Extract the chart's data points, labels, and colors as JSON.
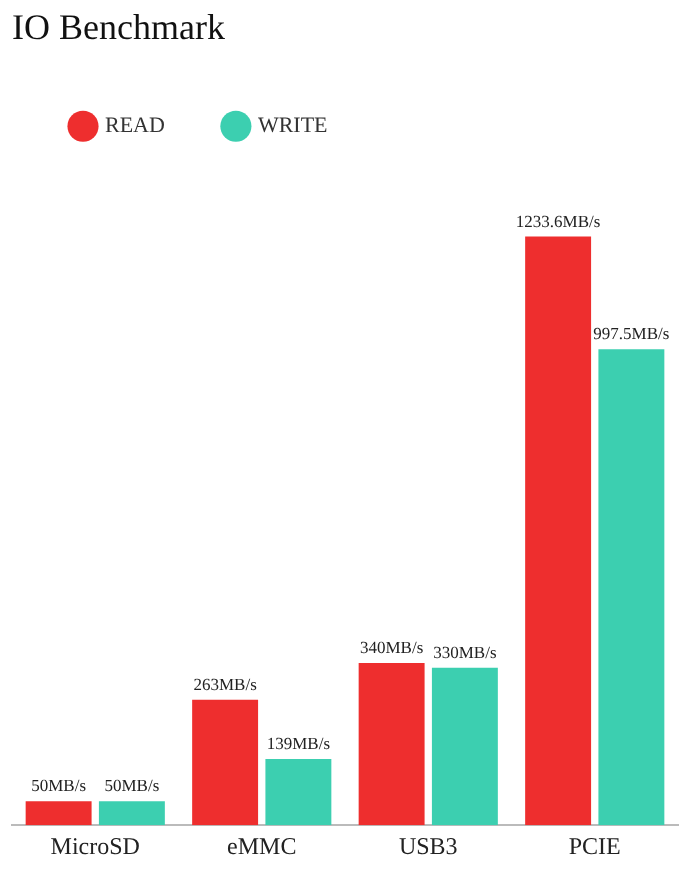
{
  "chart_data": {
    "type": "bar",
    "title": "IO Benchmark",
    "categories": [
      "MicroSD",
      "eMMC",
      "USB3",
      "PCIE"
    ],
    "series": [
      {
        "name": "READ",
        "color": "#ee2e2e",
        "values": [
          50,
          263,
          340,
          1233.6
        ],
        "value_labels": [
          "50MB/s",
          "263MB/s",
          "340MB/s",
          "1233.6MB/s"
        ]
      },
      {
        "name": "WRITE",
        "color": "#3ccfb0",
        "values": [
          50,
          139,
          330,
          997.5
        ],
        "value_labels": [
          "50MB/s",
          "139MB/s",
          "330MB/s",
          "997.5MB/s"
        ]
      }
    ],
    "legend": "top left",
    "tick_labels": "x",
    "grid": false
  }
}
